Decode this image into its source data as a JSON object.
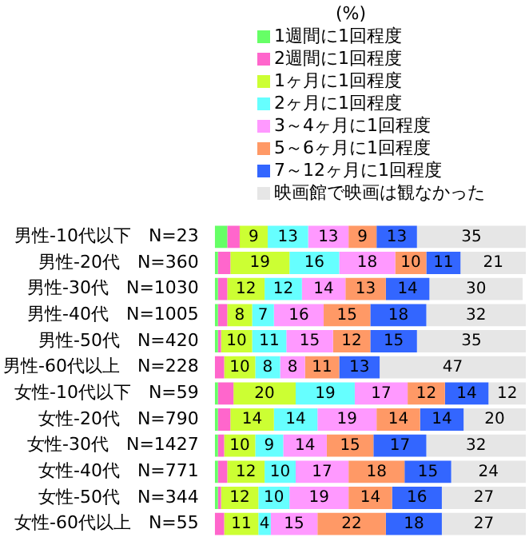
{
  "chart_data": {
    "type": "bar",
    "orientation": "horizontal",
    "stacked": true,
    "legend": "top",
    "data_labels": false,
    "tick_labels": "y",
    "annotations": [
      "(%)"
    ],
    "categories": [
      "男性-10代以下　N=23",
      "男性-20代　N=360",
      "男性-30代　N=1030",
      "男性-40代　N=1005",
      "男性-50代　N=420",
      "男性-60代以上　N=228",
      "女性-10代以下　N=59",
      "女性-20代　N=790",
      "女性-30代　N=1427",
      "女性-40代　N=771",
      "女性-50代　N=344",
      "女性-60代以上　N=55"
    ],
    "xlim": [
      0,
      100
    ],
    "series": [
      {
        "name": "1週間に1回程度",
        "color": "#66ff66",
        "values": [
          4,
          1,
          1,
          1,
          1,
          0,
          1,
          1,
          1,
          1,
          1,
          0
        ],
        "value_labels": [
          null,
          null,
          null,
          null,
          null,
          null,
          null,
          null,
          null,
          null,
          null,
          null
        ]
      },
      {
        "name": "2週間に1回程度",
        "color": "#ff66cc",
        "values": [
          4,
          4,
          3,
          3,
          1,
          3,
          5,
          4,
          2,
          3,
          1,
          3
        ],
        "value_labels": [
          null,
          null,
          null,
          null,
          null,
          null,
          null,
          null,
          null,
          null,
          null,
          null
        ]
      },
      {
        "name": "1ヶ月に1回程度",
        "color": "#ccff33",
        "values": [
          9,
          19,
          12,
          8,
          10,
          10,
          20,
          14,
          10,
          12,
          12,
          11
        ],
        "value_labels": [
          "9",
          "19",
          "12",
          "8",
          "10",
          "10",
          "20",
          "14",
          "10",
          "12",
          "12",
          "11"
        ]
      },
      {
        "name": "2ヶ月に1回程度",
        "color": "#66ffff",
        "values": [
          13,
          16,
          12,
          7,
          11,
          8,
          19,
          14,
          9,
          10,
          10,
          4
        ],
        "value_labels": [
          "13",
          "16",
          "12",
          "7",
          "11",
          "8",
          "19",
          "14",
          "9",
          "10",
          "10",
          "4"
        ]
      },
      {
        "name": "3～4ヶ月に1回程度",
        "color": "#ff99ff",
        "values": [
          13,
          18,
          14,
          16,
          15,
          8,
          17,
          19,
          14,
          17,
          19,
          15
        ],
        "value_labels": [
          "13",
          "18",
          "14",
          "16",
          "15",
          "8",
          "17",
          "19",
          "14",
          "17",
          "19",
          "15"
        ]
      },
      {
        "name": "5～6ヶ月に1回程度",
        "color": "#ff9966",
        "values": [
          9,
          10,
          13,
          15,
          12,
          11,
          12,
          14,
          15,
          18,
          14,
          22
        ],
        "value_labels": [
          "9",
          "10",
          "13",
          "15",
          "12",
          "11",
          "12",
          "14",
          "15",
          "18",
          "14",
          "22"
        ]
      },
      {
        "name": "7～12ヶ月に1回程度",
        "color": "#3366ff",
        "values": [
          13,
          11,
          14,
          18,
          15,
          13,
          14,
          14,
          17,
          15,
          16,
          18
        ],
        "value_labels": [
          "13",
          "11",
          "14",
          "18",
          "15",
          "13",
          "14",
          "14",
          "17",
          "15",
          "16",
          "18"
        ]
      },
      {
        "name": "映画館で映画は観なかった",
        "color": "#e6e6e6",
        "values": [
          35,
          21,
          30,
          32,
          35,
          47,
          12,
          20,
          32,
          24,
          27,
          27
        ],
        "value_labels": [
          "35",
          "21",
          "30",
          "32",
          "35",
          "47",
          "12",
          "20",
          "32",
          "24",
          "27",
          "27"
        ]
      }
    ]
  }
}
